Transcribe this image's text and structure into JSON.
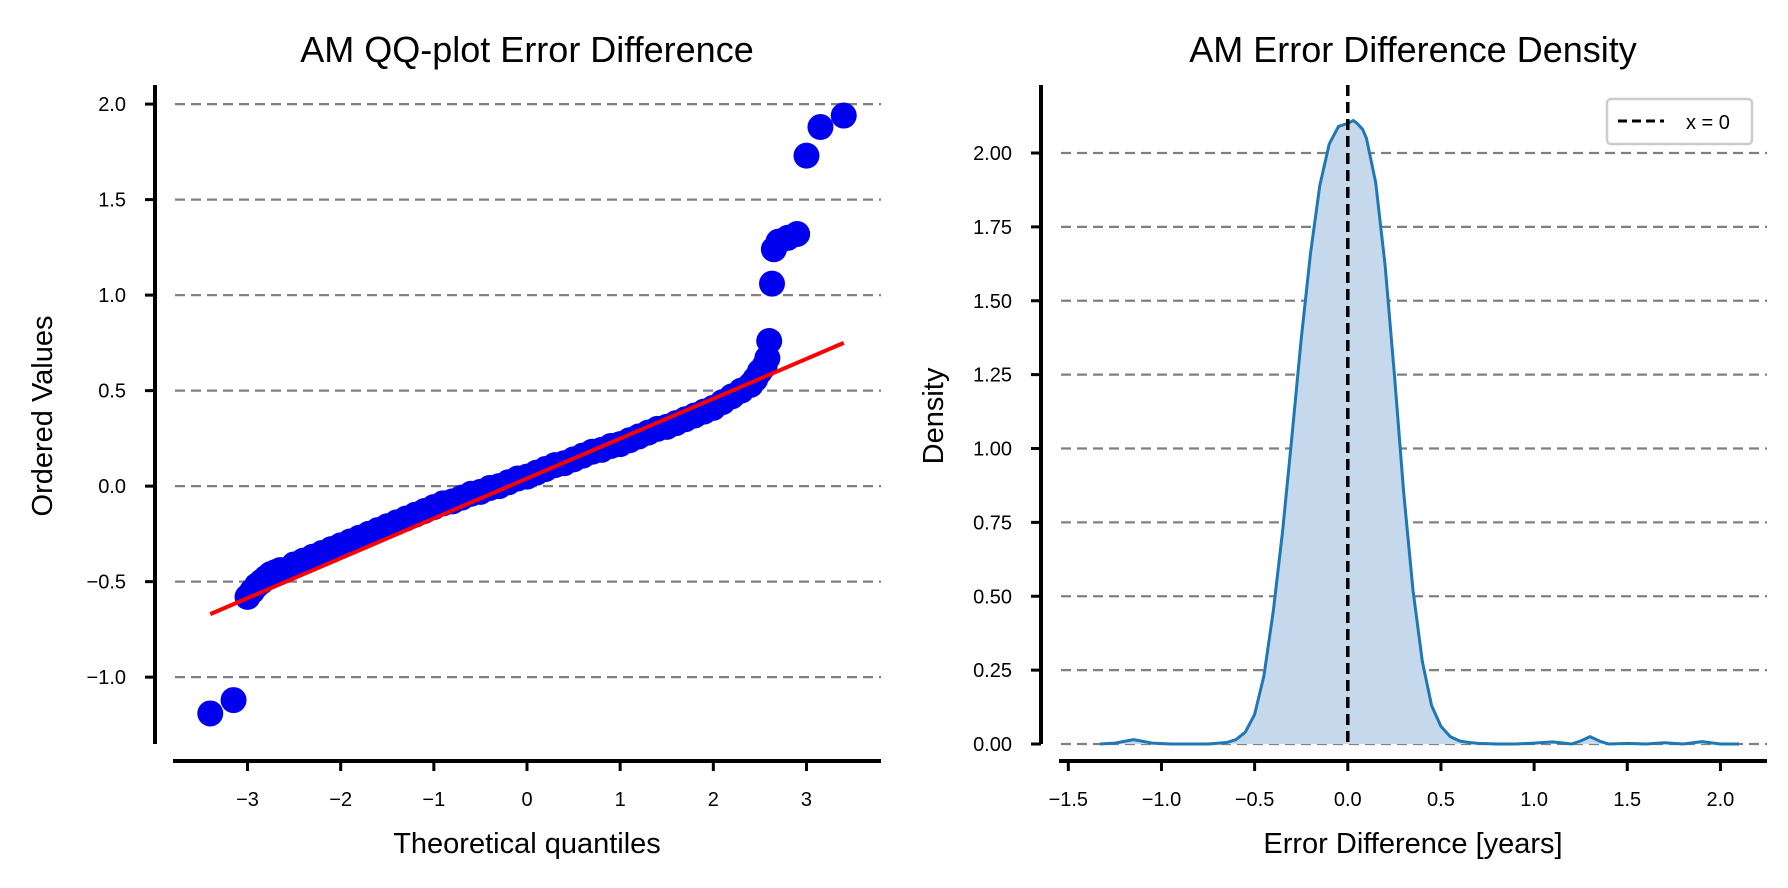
{
  "chart_data": [
    {
      "type": "scatter",
      "title": "AM QQ-plot Error Difference",
      "xlabel": "Theoretical quantiles",
      "ylabel": "Ordered Values",
      "xlim": [
        -3.8,
        3.8
      ],
      "ylim": [
        -1.35,
        2.1
      ],
      "xticks": [
        -3,
        -2,
        -1,
        0,
        1,
        2,
        3
      ],
      "xtick_labels": [
        "−3",
        "−2",
        "−1",
        "0",
        "1",
        "2",
        "3"
      ],
      "yticks": [
        -1.0,
        -0.5,
        0.0,
        0.5,
        1.0,
        1.5,
        2.0
      ],
      "ytick_labels": [
        "−1.0",
        "−0.5",
        "0.0",
        "0.5",
        "1.0",
        "1.5",
        "2.0"
      ],
      "grid": "y, dashed",
      "point_color": "#0000ee",
      "line_color": "#ff0000",
      "series": [
        {
          "type": "scatter",
          "x": [
            -3.4,
            -3.15,
            -3.0,
            -2.95,
            -2.9,
            -2.85,
            -2.8,
            -2.75,
            -2.7,
            -2.65,
            -2.6,
            -2.5,
            -2.4,
            -2.3,
            -2.2,
            -2.1,
            -2.0,
            -1.9,
            -1.8,
            -1.7,
            -1.6,
            -1.5,
            -1.4,
            -1.3,
            -1.2,
            -1.1,
            -1.0,
            -0.9,
            -0.8,
            -0.7,
            -0.6,
            -0.5,
            -0.4,
            -0.3,
            -0.2,
            -0.1,
            0.0,
            0.1,
            0.2,
            0.3,
            0.4,
            0.5,
            0.6,
            0.7,
            0.8,
            0.9,
            1.0,
            1.1,
            1.2,
            1.3,
            1.4,
            1.5,
            1.6,
            1.7,
            1.8,
            1.9,
            2.0,
            2.1,
            2.2,
            2.3,
            2.4,
            2.45,
            2.5,
            2.55,
            2.58,
            2.6,
            2.63,
            2.65,
            2.7,
            2.8,
            2.9,
            3.0,
            3.15,
            3.4
          ],
          "y": [
            -1.19,
            -1.12,
            -0.58,
            -0.55,
            -0.52,
            -0.5,
            -0.48,
            -0.46,
            -0.45,
            -0.44,
            -0.44,
            -0.41,
            -0.39,
            -0.37,
            -0.35,
            -0.33,
            -0.31,
            -0.29,
            -0.27,
            -0.25,
            -0.23,
            -0.21,
            -0.19,
            -0.17,
            -0.15,
            -0.13,
            -0.11,
            -0.09,
            -0.08,
            -0.06,
            -0.04,
            -0.03,
            -0.01,
            0.0,
            0.02,
            0.04,
            0.05,
            0.07,
            0.09,
            0.11,
            0.12,
            0.14,
            0.16,
            0.18,
            0.19,
            0.21,
            0.22,
            0.24,
            0.26,
            0.28,
            0.3,
            0.31,
            0.33,
            0.35,
            0.37,
            0.39,
            0.41,
            0.44,
            0.47,
            0.5,
            0.53,
            0.56,
            0.6,
            0.63,
            0.67,
            0.76,
            1.06,
            1.24,
            1.28,
            1.3,
            1.32,
            1.73,
            1.88,
            1.94
          ]
        },
        {
          "type": "line",
          "x": [
            -3.4,
            3.4
          ],
          "y": [
            -0.67,
            0.75
          ]
        }
      ]
    },
    {
      "type": "area",
      "title": "AM Error Difference Density",
      "xlabel": "Error Difference [years]",
      "ylabel": "Density",
      "xlim": [
        -1.55,
        2.25
      ],
      "ylim": [
        0,
        2.2
      ],
      "xticks": [
        -1.5,
        -1.0,
        -0.5,
        0.0,
        0.5,
        1.0,
        1.5,
        2.0
      ],
      "xtick_labels": [
        "−1.5",
        "−1.0",
        "−0.5",
        "0.0",
        "0.5",
        "1.0",
        "1.5",
        "2.0"
      ],
      "yticks": [
        0.0,
        0.25,
        0.5,
        0.75,
        1.0,
        1.25,
        1.5,
        1.75,
        2.0
      ],
      "ytick_labels": [
        "0.00",
        "0.25",
        "0.50",
        "0.75",
        "1.00",
        "1.25",
        "1.50",
        "1.75",
        "2.00"
      ],
      "grid": "y, dashed",
      "line_color": "#1f77b4",
      "fill_color": "#c6d9ec",
      "legend": {
        "placement": "top-right",
        "entries": [
          "x = 0"
        ]
      },
      "vline": {
        "x": 0,
        "label": "x = 0",
        "style": "dashed",
        "color": "#000000"
      },
      "series": [
        {
          "name": "density",
          "x": [
            -1.33,
            -1.25,
            -1.15,
            -1.05,
            -0.95,
            -0.85,
            -0.75,
            -0.65,
            -0.6,
            -0.55,
            -0.5,
            -0.45,
            -0.4,
            -0.35,
            -0.3,
            -0.25,
            -0.2,
            -0.15,
            -0.1,
            -0.05,
            0.0,
            0.03,
            0.05,
            0.08,
            0.1,
            0.15,
            0.2,
            0.25,
            0.3,
            0.35,
            0.4,
            0.45,
            0.5,
            0.55,
            0.6,
            0.65,
            0.7,
            0.8,
            0.9,
            1.0,
            1.1,
            1.2,
            1.25,
            1.3,
            1.35,
            1.4,
            1.5,
            1.6,
            1.7,
            1.8,
            1.9,
            2.0,
            2.1
          ],
          "y": [
            0.0,
            0.003,
            0.015,
            0.003,
            0.0,
            0.0,
            0.0,
            0.005,
            0.015,
            0.04,
            0.1,
            0.23,
            0.45,
            0.72,
            1.04,
            1.37,
            1.66,
            1.89,
            2.03,
            2.09,
            2.1,
            2.11,
            2.1,
            2.08,
            2.05,
            1.9,
            1.62,
            1.25,
            0.85,
            0.52,
            0.28,
            0.13,
            0.06,
            0.025,
            0.01,
            0.005,
            0.002,
            0.0,
            0.0,
            0.003,
            0.007,
            0.0,
            0.01,
            0.025,
            0.01,
            0.0,
            0.002,
            0.0,
            0.004,
            0.0,
            0.008,
            0.0,
            0.0
          ]
        }
      ]
    }
  ]
}
